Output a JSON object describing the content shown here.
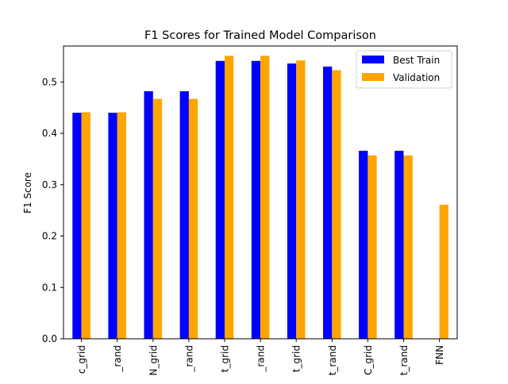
{
  "chart_data": {
    "type": "bar",
    "title": "F1 Scores for Trained Model Comparison",
    "xlabel": "",
    "ylabel": "F1 Score",
    "ylim": [
      0,
      0.57
    ],
    "yticks": [
      0.0,
      0.1,
      0.2,
      0.3,
      0.4,
      0.5
    ],
    "ytick_labels": [
      "0.0",
      "0.1",
      "0.2",
      "0.3",
      "0.4",
      "0.5"
    ],
    "grid": false,
    "legend_position": "top-right",
    "categories": [
      "c_grid",
      "_rand",
      "N_grid",
      "_rand",
      "t_grid",
      "_rand",
      "t_grid",
      "t_rand",
      "C_grid",
      "t_rand",
      "FNN"
    ],
    "series": [
      {
        "name": "Best Train",
        "color": "#0000ff",
        "values": [
          0.44,
          0.44,
          0.482,
          0.482,
          0.541,
          0.541,
          0.536,
          0.53,
          0.366,
          0.366,
          null
        ]
      },
      {
        "name": "Validation",
        "color": "#ffa500",
        "values": [
          0.441,
          0.441,
          0.467,
          0.467,
          0.551,
          0.551,
          0.542,
          0.523,
          0.357,
          0.357,
          0.261
        ]
      }
    ]
  }
}
